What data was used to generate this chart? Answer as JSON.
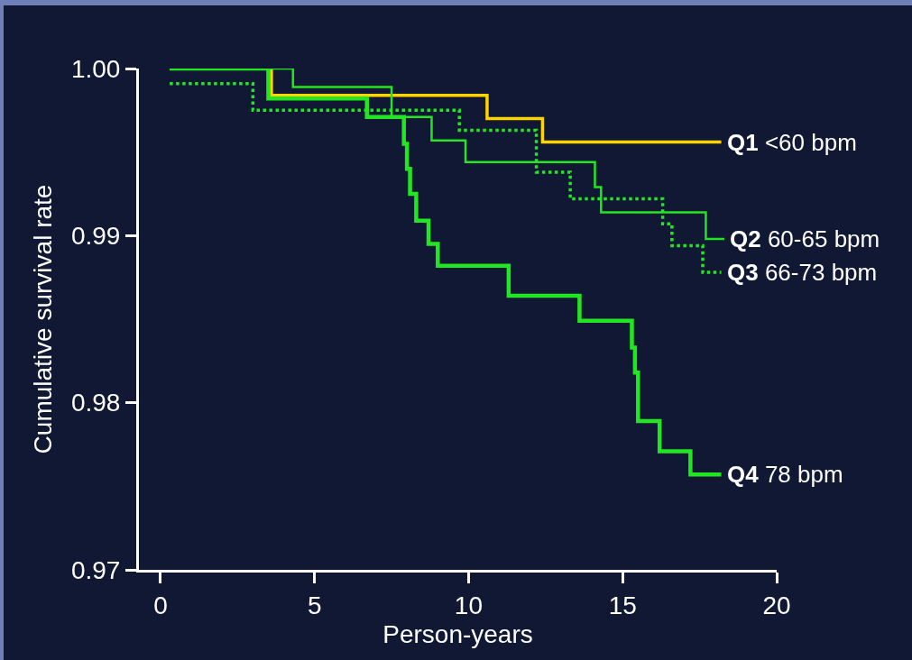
{
  "chart_data": {
    "type": "step",
    "xlabel": "Person-years",
    "ylabel": "Cumulative survival rate",
    "xlim": [
      -0.7,
      20
    ],
    "xticks": [
      0,
      5,
      10,
      15,
      20
    ],
    "ylim": [
      0.97,
      1.0
    ],
    "yticks": [
      {
        "value": 0.97,
        "label": "0.97"
      },
      {
        "value": 0.98,
        "label": "0.98"
      },
      {
        "value": 0.99,
        "label": "0.99"
      },
      {
        "value": 1.0,
        "label": "1.00"
      }
    ],
    "legend": false,
    "marker": "none",
    "series": [
      {
        "name": "Q1 <60 bpm",
        "color": "#ffd400",
        "line_style": "solid",
        "x": [
          0.3,
          3.6,
          10.6,
          12.4,
          18.2
        ],
        "values": [
          1.0,
          0.9984,
          0.997,
          0.9956,
          0.9956
        ]
      },
      {
        "name": "Q2 60-65 bpm",
        "color": "#22e622",
        "line_style": "solid",
        "x": [
          0.3,
          4.3,
          7.5,
          8.8,
          9.9,
          14.1,
          14.3,
          17.7,
          18.3
        ],
        "values": [
          1.0,
          0.9989,
          0.9971,
          0.9957,
          0.9944,
          0.9929,
          0.9914,
          0.9898,
          0.9898
        ]
      },
      {
        "name": "Q3 66-73 bpm",
        "color": "#22e622",
        "line_style": "dotted",
        "x": [
          0.3,
          3.0,
          9.7,
          12.2,
          13.3,
          16.3,
          16.6,
          17.6,
          18.2
        ],
        "values": [
          0.9991,
          0.9975,
          0.9963,
          0.9938,
          0.9922,
          0.9907,
          0.9894,
          0.9878,
          0.9878
        ]
      },
      {
        "name": "Q4 78 bpm",
        "color": "#22e622",
        "line_style": "solid",
        "x": [
          0.3,
          3.5,
          6.7,
          7.9,
          8.0,
          8.1,
          8.3,
          8.7,
          9.0,
          11.3,
          13.6,
          15.3,
          15.4,
          15.5,
          16.2,
          17.2,
          18.2
        ],
        "values": [
          1.0,
          0.9982,
          0.9971,
          0.9955,
          0.994,
          0.9925,
          0.9909,
          0.9895,
          0.9882,
          0.9864,
          0.9849,
          0.9833,
          0.9818,
          0.9789,
          0.9771,
          0.9757,
          0.9757
        ]
      }
    ]
  }
}
